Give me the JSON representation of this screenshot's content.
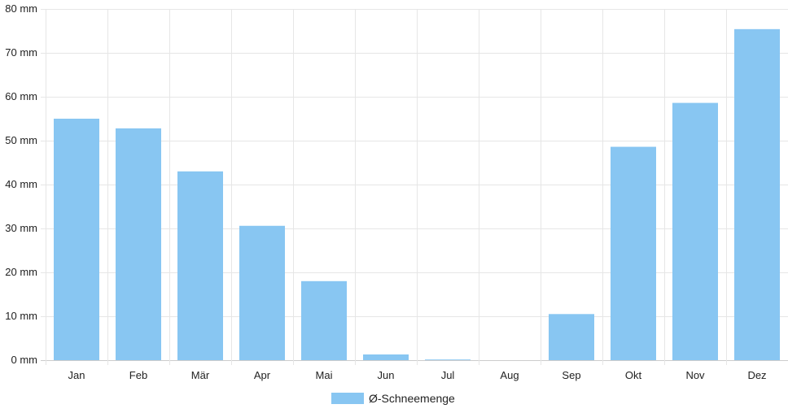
{
  "chart_data": {
    "type": "bar",
    "categories": [
      "Jan",
      "Feb",
      "Mär",
      "Apr",
      "Mai",
      "Jun",
      "Jul",
      "Aug",
      "Sep",
      "Okt",
      "Nov",
      "Dez"
    ],
    "series": [
      {
        "name": "Ø-Schneemenge",
        "values": [
          55,
          52.8,
          43,
          30.6,
          18,
          1.3,
          0.1,
          0,
          10.5,
          48.6,
          58.6,
          75.4
        ],
        "color": "#88c6f2"
      }
    ],
    "y_unit": "mm",
    "y_ticks": [
      "0 mm",
      "10 mm",
      "20 mm",
      "30 mm",
      "40 mm",
      "50 mm",
      "60 mm",
      "70 mm",
      "80 mm"
    ],
    "ylim": [
      0,
      80
    ],
    "grid": true,
    "legend_position": "bottom-center",
    "title": "",
    "xlabel": "",
    "ylabel": ""
  }
}
